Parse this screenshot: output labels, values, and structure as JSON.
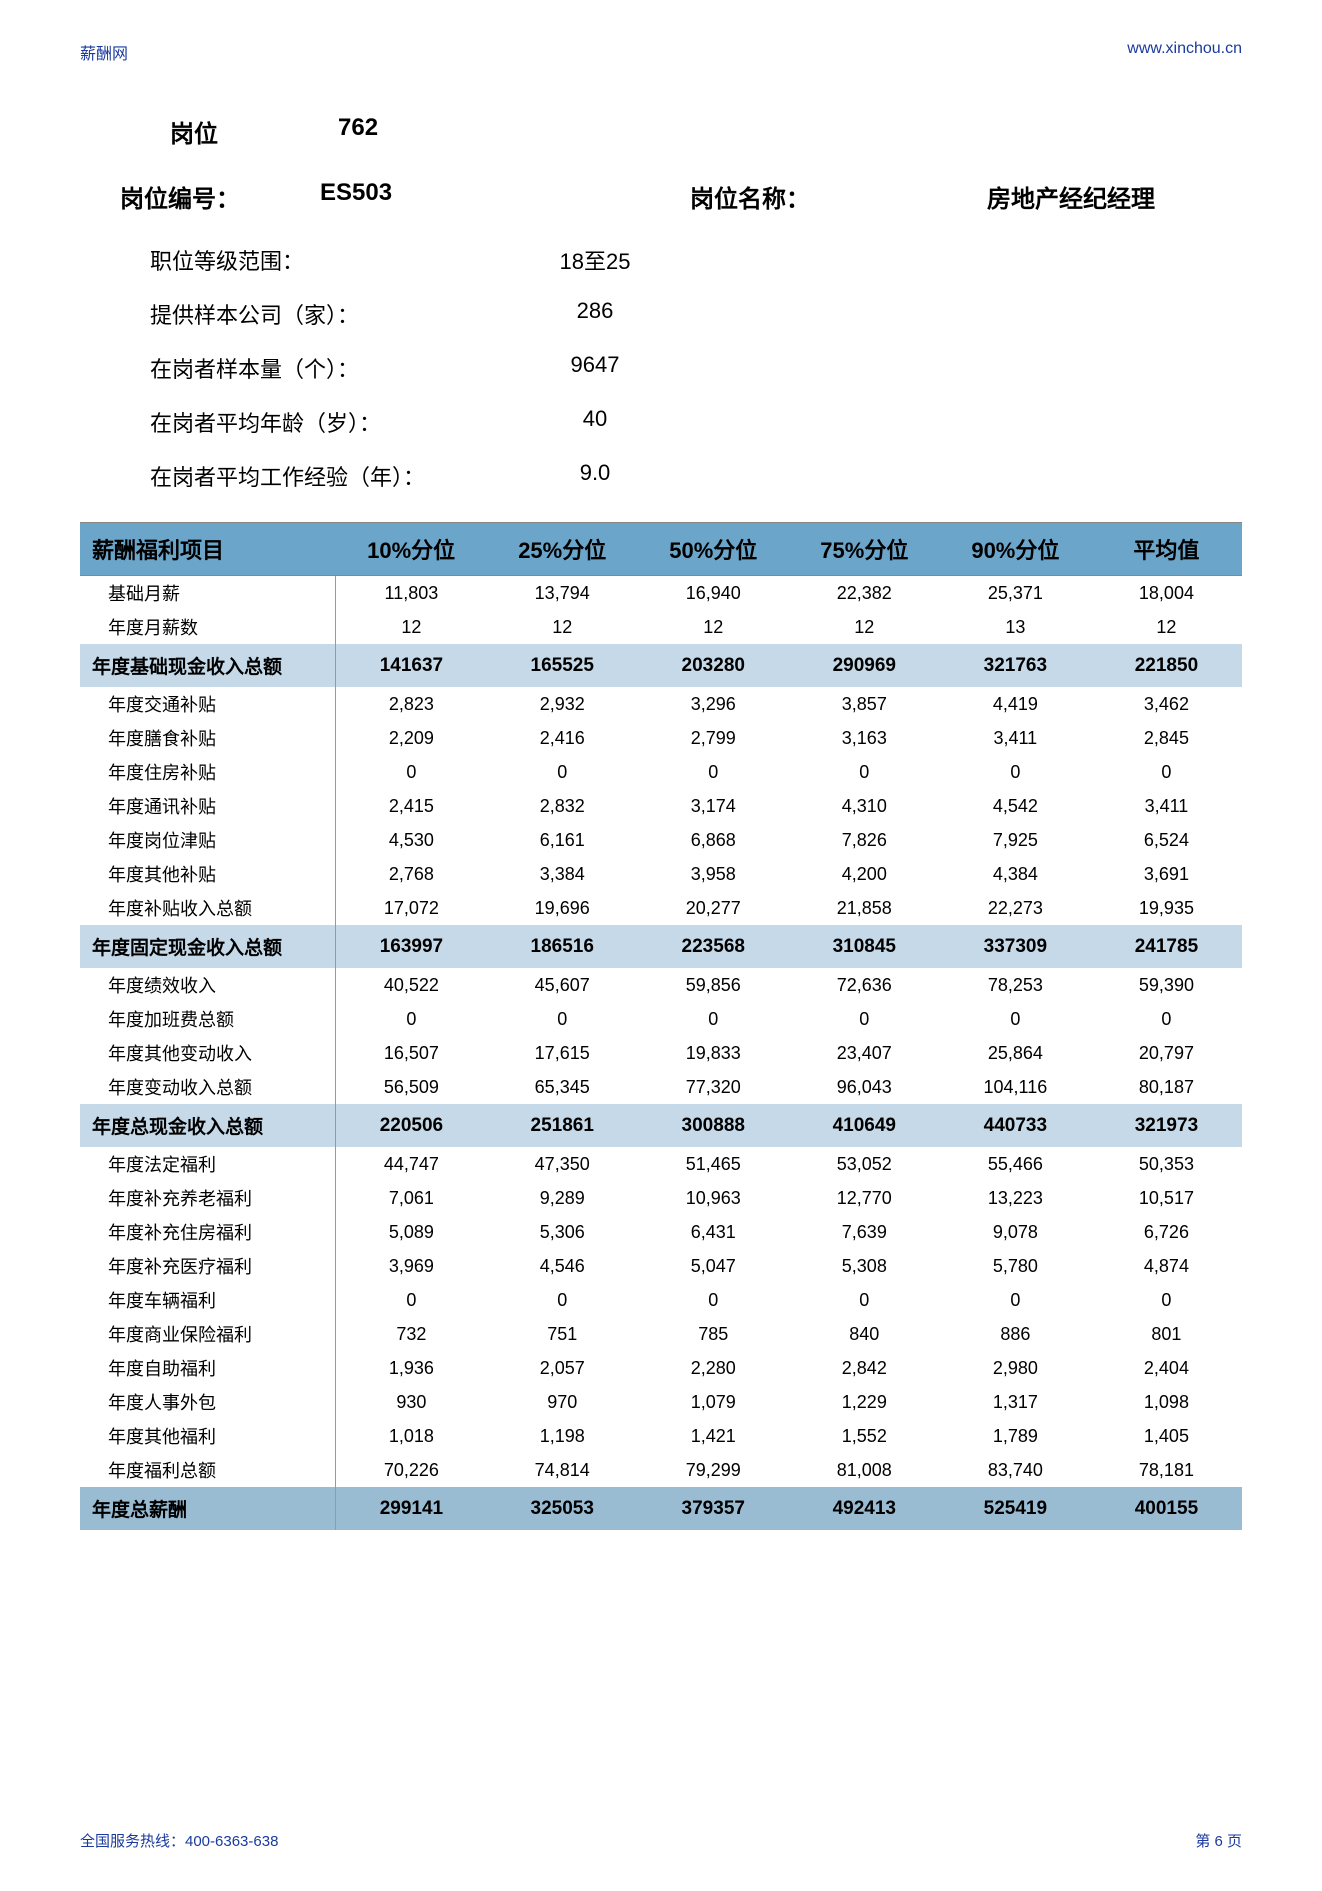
{
  "header": {
    "site_name": "薪酬网",
    "site_url": "www.xinchou.cn"
  },
  "position": {
    "pos_label": "岗位",
    "pos_number": "762",
    "id_label": "岗位编号：",
    "id_value": "ES503",
    "name_label": "岗位名称：",
    "name_value": "房地产经纪经理"
  },
  "meta": [
    {
      "label": "职位等级范围：",
      "value": "18至25"
    },
    {
      "label": "提供样本公司（家）：",
      "value": "286"
    },
    {
      "label": "在岗者样本量（个）：",
      "value": "9647"
    },
    {
      "label": "在岗者平均年龄（岁）：",
      "value": "40"
    },
    {
      "label": "在岗者平均工作经验（年）：",
      "value": "9.0"
    }
  ],
  "table": {
    "headers": [
      "薪酬福利项目",
      "10%分位",
      "25%分位",
      "50%分位",
      "75%分位",
      "90%分位",
      "平均值"
    ],
    "rows": [
      {
        "type": "data",
        "cells": [
          "基础月薪",
          "11,803",
          "13,794",
          "16,940",
          "22,382",
          "25,371",
          "18,004"
        ]
      },
      {
        "type": "data",
        "cells": [
          "年度月薪数",
          "12",
          "12",
          "12",
          "12",
          "13",
          "12"
        ]
      },
      {
        "type": "subtotal",
        "cells": [
          "年度基础现金收入总额",
          "141637",
          "165525",
          "203280",
          "290969",
          "321763",
          "221850"
        ]
      },
      {
        "type": "data",
        "cells": [
          "年度交通补贴",
          "2,823",
          "2,932",
          "3,296",
          "3,857",
          "4,419",
          "3,462"
        ]
      },
      {
        "type": "data",
        "cells": [
          "年度膳食补贴",
          "2,209",
          "2,416",
          "2,799",
          "3,163",
          "3,411",
          "2,845"
        ]
      },
      {
        "type": "data",
        "cells": [
          "年度住房补贴",
          "0",
          "0",
          "0",
          "0",
          "0",
          "0"
        ]
      },
      {
        "type": "data",
        "cells": [
          "年度通讯补贴",
          "2,415",
          "2,832",
          "3,174",
          "4,310",
          "4,542",
          "3,411"
        ]
      },
      {
        "type": "data",
        "cells": [
          "年度岗位津贴",
          "4,530",
          "6,161",
          "6,868",
          "7,826",
          "7,925",
          "6,524"
        ]
      },
      {
        "type": "data",
        "cells": [
          "年度其他补贴",
          "2,768",
          "3,384",
          "3,958",
          "4,200",
          "4,384",
          "3,691"
        ]
      },
      {
        "type": "data",
        "cells": [
          "年度补贴收入总额",
          "17,072",
          "19,696",
          "20,277",
          "21,858",
          "22,273",
          "19,935"
        ]
      },
      {
        "type": "subtotal",
        "cells": [
          "年度固定现金收入总额",
          "163997",
          "186516",
          "223568",
          "310845",
          "337309",
          "241785"
        ]
      },
      {
        "type": "data",
        "cells": [
          "年度绩效收入",
          "40,522",
          "45,607",
          "59,856",
          "72,636",
          "78,253",
          "59,390"
        ]
      },
      {
        "type": "data",
        "cells": [
          "年度加班费总额",
          "0",
          "0",
          "0",
          "0",
          "0",
          "0"
        ]
      },
      {
        "type": "data",
        "cells": [
          "年度其他变动收入",
          "16,507",
          "17,615",
          "19,833",
          "23,407",
          "25,864",
          "20,797"
        ]
      },
      {
        "type": "data",
        "cells": [
          "年度变动收入总额",
          "56,509",
          "65,345",
          "77,320",
          "96,043",
          "104,116",
          "80,187"
        ]
      },
      {
        "type": "subtotal",
        "cells": [
          "年度总现金收入总额",
          "220506",
          "251861",
          "300888",
          "410649",
          "440733",
          "321973"
        ]
      },
      {
        "type": "data",
        "cells": [
          "年度法定福利",
          "44,747",
          "47,350",
          "51,465",
          "53,052",
          "55,466",
          "50,353"
        ]
      },
      {
        "type": "data",
        "cells": [
          "年度补充养老福利",
          "7,061",
          "9,289",
          "10,963",
          "12,770",
          "13,223",
          "10,517"
        ]
      },
      {
        "type": "data",
        "cells": [
          "年度补充住房福利",
          "5,089",
          "5,306",
          "6,431",
          "7,639",
          "9,078",
          "6,726"
        ]
      },
      {
        "type": "data",
        "cells": [
          "年度补充医疗福利",
          "3,969",
          "4,546",
          "5,047",
          "5,308",
          "5,780",
          "4,874"
        ]
      },
      {
        "type": "data",
        "cells": [
          "年度车辆福利",
          "0",
          "0",
          "0",
          "0",
          "0",
          "0"
        ]
      },
      {
        "type": "data",
        "cells": [
          "年度商业保险福利",
          "732",
          "751",
          "785",
          "840",
          "886",
          "801"
        ]
      },
      {
        "type": "data",
        "cells": [
          "年度自助福利",
          "1,936",
          "2,057",
          "2,280",
          "2,842",
          "2,980",
          "2,404"
        ]
      },
      {
        "type": "data",
        "cells": [
          "年度人事外包",
          "930",
          "970",
          "1,079",
          "1,229",
          "1,317",
          "1,098"
        ]
      },
      {
        "type": "data",
        "cells": [
          "年度其他福利",
          "1,018",
          "1,198",
          "1,421",
          "1,552",
          "1,789",
          "1,405"
        ]
      },
      {
        "type": "data",
        "cells": [
          "年度福利总额",
          "70,226",
          "74,814",
          "79,299",
          "81,008",
          "83,740",
          "78,181"
        ]
      },
      {
        "type": "grand",
        "cells": [
          "年度总薪酬",
          "299141",
          "325053",
          "379357",
          "492413",
          "525419",
          "400155"
        ]
      }
    ]
  },
  "footer": {
    "hotline": "全国服务热线：400-6363-638",
    "page": "第 6 页"
  },
  "colors": {
    "header_bg": "#6ba5c9",
    "subtotal_bg": "#c5d9e8",
    "grand_bg": "#99bcd3",
    "link_color": "#1a3a9e"
  }
}
